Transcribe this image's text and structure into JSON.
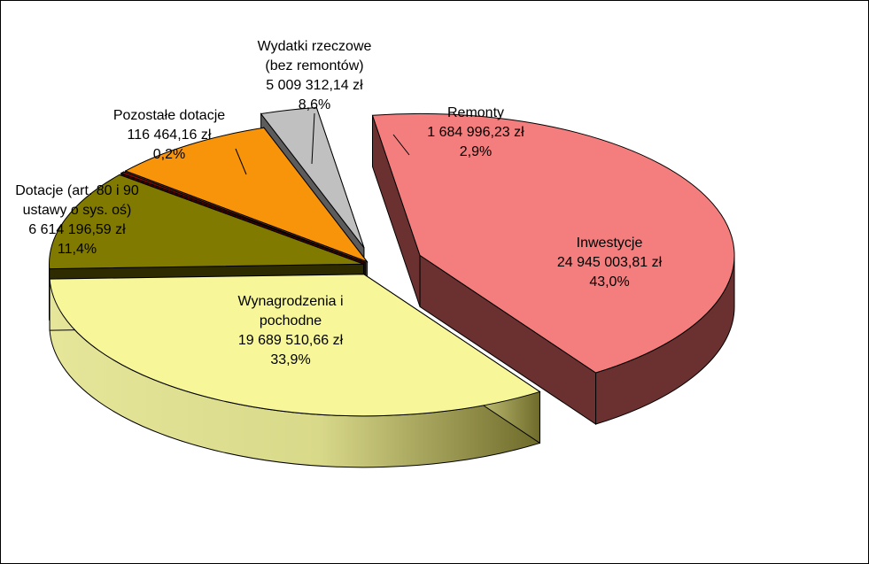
{
  "chart_data": {
    "type": "pie",
    "title": "",
    "style": "3d-exploded",
    "slices": [
      {
        "name": "Inwestycje",
        "name_lines": [
          "Inwestycje"
        ],
        "amount": "24 945 003,81 zł",
        "percent": "43,0%",
        "value": 24945003.81,
        "color": "#f47e7e"
      },
      {
        "name": "Remonty",
        "name_lines": [
          "Remonty"
        ],
        "amount": "1 684 996,23 zł",
        "percent": "2,9%",
        "value": 1684996.23,
        "color": "#c0c0c0"
      },
      {
        "name": "Wydatki rzeczowe (bez remontów)",
        "name_lines": [
          "Wydatki rzeczowe",
          "(bez remontów)"
        ],
        "amount": "5 009 312,14 zł",
        "percent": "8,6%",
        "value": 5009312.14,
        "color": "#f7940a"
      },
      {
        "name": "Pozostałe dotacje",
        "name_lines": [
          "Pozostałe dotacje"
        ],
        "amount": "116 464,16 zł",
        "percent": "0,2%",
        "value": 116464.16,
        "color": "#8b0a0a"
      },
      {
        "name": "Dotacje (art. 80 i 90 ustawy o sys. oś)",
        "name_lines": [
          "Dotacje (art. 80 i 90",
          "ustawy o sys. oś)"
        ],
        "amount": "6 614 196,59 zł",
        "percent": "11,4%",
        "value": 6614196.59,
        "color": "#807a00"
      },
      {
        "name": "Wynagrodzenia i pochodne",
        "name_lines": [
          "Wynagrodzenia i",
          "pochodne"
        ],
        "amount": "19 689 510,66 zł",
        "percent": "33,9%",
        "value": 19689510.66,
        "color": "#f7f79a"
      }
    ]
  }
}
